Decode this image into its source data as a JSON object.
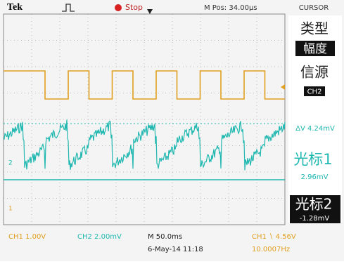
{
  "header": {
    "brand": "Tek",
    "status": "Stop",
    "position": "M Pos: 34.00µs",
    "menu_title": "CURSOR"
  },
  "menu": {
    "type_label": "类型",
    "type_value": "幅度",
    "source_label": "信源",
    "source_value": "CH2",
    "delta": "ΔV 4.24mV",
    "cursor1_label": "光标1",
    "cursor1_value": "2.96mV",
    "cursor2_label": "光标2",
    "cursor2_value": "-1.28mV"
  },
  "markers": {
    "ch1": "1",
    "ch2": "2"
  },
  "footer": {
    "ch1_scale": "CH1 1.00V",
    "ch2_scale": "CH2 2.00mV",
    "timebase": "M 50.0ms",
    "date": "6-May-14 11:18",
    "trigger": "CH1 ∖ 4.56V",
    "frequency": "10.0007Hz"
  }
}
